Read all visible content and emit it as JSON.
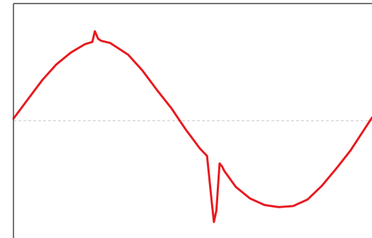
{
  "chart_data": {
    "type": "line",
    "title": "",
    "xlabel": "",
    "ylabel": "",
    "xlim": [
      0,
      100
    ],
    "ylim": [
      -1.1,
      1.1
    ],
    "grid": false,
    "reference_line": {
      "y": 0,
      "style": "dashed",
      "color": "#cccccc"
    },
    "legend": "none",
    "series": [
      {
        "color": "#e8191e",
        "x": [
          0,
          4,
          8,
          12,
          16,
          20,
          22,
          22.7,
          23.6,
          24.5,
          27,
          32,
          36,
          40,
          44,
          48,
          52,
          54,
          55.3,
          55.9,
          56.6,
          57.5,
          58.2,
          58.8,
          62,
          66,
          70,
          74,
          78,
          82,
          86,
          90,
          94,
          100
        ],
        "y": [
          0.02,
          0.2,
          0.38,
          0.53,
          0.64,
          0.72,
          0.74,
          0.84,
          0.77,
          0.75,
          0.73,
          0.62,
          0.47,
          0.29,
          0.12,
          -0.08,
          -0.26,
          -0.33,
          -0.76,
          -0.95,
          -0.84,
          -0.4,
          -0.43,
          -0.47,
          -0.62,
          -0.73,
          -0.79,
          -0.81,
          -0.8,
          -0.74,
          -0.61,
          -0.45,
          -0.28,
          0.03
        ]
      }
    ]
  }
}
